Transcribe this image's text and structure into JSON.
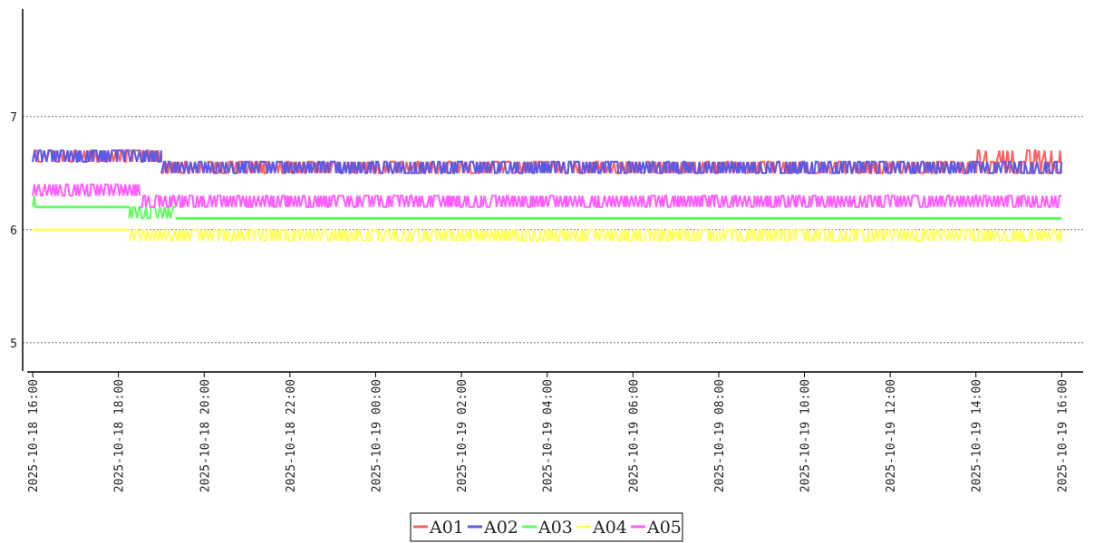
{
  "chart_data": {
    "type": "line",
    "title": "",
    "xlabel": "",
    "ylabel": "",
    "ylim": [
      4.75,
      7.95
    ],
    "yticks": [
      5,
      6,
      7
    ],
    "xlim": [
      "2025-10-18 15:46",
      "2025-10-19 16:30"
    ],
    "xticks": [
      "2025-10-18 16:00",
      "2025-10-18 18:00",
      "2025-10-18 20:00",
      "2025-10-18 22:00",
      "2025-10-19 00:00",
      "2025-10-19 02:00",
      "2025-10-19 04:00",
      "2025-10-19 06:00",
      "2025-10-19 08:00",
      "2025-10-19 10:00",
      "2025-10-19 12:00",
      "2025-10-19 14:00",
      "2025-10-19 16:00"
    ],
    "grid": "horizontal-dotted",
    "legend_position": "bottom-center",
    "series": [
      {
        "name": "A01",
        "color": "#ff5f5f",
        "segments": [
          {
            "from": "2025-10-18 16:00",
            "to": "2025-10-18 19:00",
            "values": [
              6.6,
              6.7
            ]
          },
          {
            "from": "2025-10-18 19:00",
            "to": "2025-10-19 13:50",
            "values": [
              6.5,
              6.6
            ]
          },
          {
            "from": "2025-10-19 13:50",
            "to": "2025-10-19 16:00",
            "values": [
              6.5,
              6.6,
              6.7
            ]
          }
        ]
      },
      {
        "name": "A02",
        "color": "#5a5ae6",
        "segments": [
          {
            "from": "2025-10-18 16:00",
            "to": "2025-10-18 19:00",
            "values": [
              6.6,
              6.7
            ]
          },
          {
            "from": "2025-10-18 19:00",
            "to": "2025-10-19 16:00",
            "values": [
              6.5,
              6.6
            ]
          }
        ]
      },
      {
        "name": "A03",
        "color": "#5fff5f",
        "segments": [
          {
            "from": "2025-10-18 16:00",
            "to": "2025-10-18 16:05",
            "values": [
              6.2,
              6.3
            ]
          },
          {
            "from": "2025-10-18 16:05",
            "to": "2025-10-18 18:15",
            "values": [
              6.2
            ]
          },
          {
            "from": "2025-10-18 18:15",
            "to": "2025-10-18 19:20",
            "values": [
              6.1,
              6.2
            ]
          },
          {
            "from": "2025-10-18 19:20",
            "to": "2025-10-19 16:00",
            "values": [
              6.1
            ]
          }
        ]
      },
      {
        "name": "A04",
        "color": "#ffff5f",
        "segments": [
          {
            "from": "2025-10-18 16:00",
            "to": "2025-10-18 18:15",
            "values": [
              6.0
            ]
          },
          {
            "from": "2025-10-18 18:15",
            "to": "2025-10-19 16:00",
            "values": [
              5.9,
              6.0
            ]
          }
        ]
      },
      {
        "name": "A05",
        "color": "#ff5fff",
        "segments": [
          {
            "from": "2025-10-18 16:00",
            "to": "2025-10-18 18:30",
            "values": [
              6.3,
              6.4
            ]
          },
          {
            "from": "2025-10-18 18:30",
            "to": "2025-10-19 16:00",
            "values": [
              6.2,
              6.3
            ]
          }
        ]
      }
    ]
  }
}
